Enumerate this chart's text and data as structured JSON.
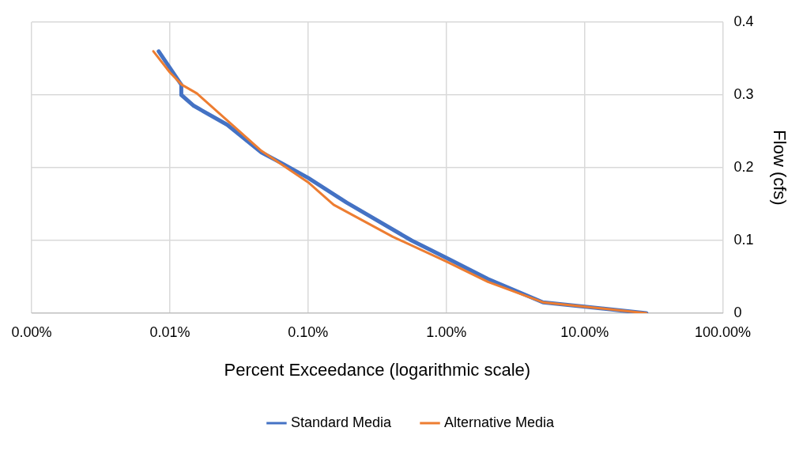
{
  "chart_data": {
    "type": "line",
    "xlabel": "Percent Exceedance (logarithmic scale)",
    "ylabel": "Flow (cfs)",
    "log": "x",
    "grid": true,
    "legend": "bottom",
    "marker": "none",
    "line_style": "solid",
    "xlim": [
      0.001,
      100
    ],
    "xticks": [
      {
        "value": 0.001,
        "label": "0.00%"
      },
      {
        "value": 0.01,
        "label": "0.01%"
      },
      {
        "value": 0.1,
        "label": "0.10%"
      },
      {
        "value": 1,
        "label": "1.00%"
      },
      {
        "value": 10,
        "label": "10.00%"
      },
      {
        "value": 100,
        "label": "100.00%"
      }
    ],
    "ylim": [
      0,
      0.4
    ],
    "yticks": [
      0,
      0.1,
      0.2,
      0.3,
      0.4
    ],
    "series": [
      {
        "name": "Standard Media",
        "color": "#4472c4",
        "x": [
          0.0083,
          0.0121,
          0.0121,
          0.0149,
          0.026,
          0.046,
          0.066,
          0.1,
          0.19,
          0.56,
          1,
          2,
          5,
          28
        ],
        "values": [
          0.36,
          0.314,
          0.3,
          0.285,
          0.259,
          0.221,
          0.205,
          0.186,
          0.152,
          0.1,
          0.076,
          0.047,
          0.015,
          0
        ]
      },
      {
        "name": "Alternative Media",
        "color": "#ed7d31",
        "x": [
          0.0076,
          0.01,
          0.0122,
          0.0157,
          0.029,
          0.046,
          0.1,
          0.153,
          0.41,
          1,
          2,
          5,
          28
        ],
        "values": [
          0.36,
          0.331,
          0.314,
          0.302,
          0.257,
          0.223,
          0.18,
          0.149,
          0.105,
          0.071,
          0.043,
          0.015,
          0
        ]
      }
    ]
  }
}
